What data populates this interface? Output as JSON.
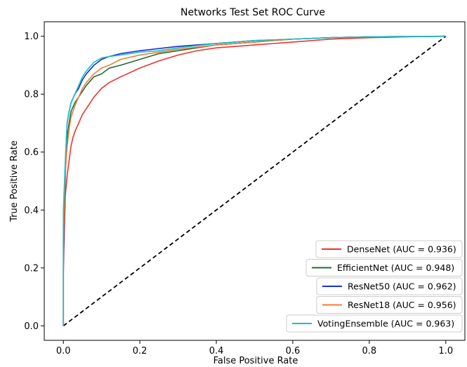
{
  "chart_data": {
    "type": "line",
    "title": "Networks Test Set ROC Curve",
    "xlabel": "False Positive Rate",
    "ylabel": "True Positive Rate",
    "xlim": [
      -0.05,
      1.05
    ],
    "ylim": [
      -0.05,
      1.05
    ],
    "xticks": [
      "0.0",
      "0.2",
      "0.4",
      "0.6",
      "0.8",
      "1.0"
    ],
    "yticks": [
      "0.0",
      "0.2",
      "0.4",
      "0.6",
      "0.8",
      "1.0"
    ],
    "grid": false,
    "legend_position": "lower-right",
    "baseline": {
      "x": [
        0,
        1
      ],
      "y": [
        0,
        1
      ],
      "style": "dashed",
      "color": "#000000"
    },
    "series": [
      {
        "name": "DenseNet (AUC = 0.936)",
        "color": "#e8352e",
        "x": [
          0,
          0,
          0.003,
          0.005,
          0.01,
          0.015,
          0.02,
          0.025,
          0.03,
          0.04,
          0.05,
          0.06,
          0.07,
          0.08,
          0.1,
          0.12,
          0.15,
          0.2,
          0.25,
          0.3,
          0.35,
          0.4,
          0.5,
          0.6,
          0.7,
          0.8,
          0.9,
          1.0
        ],
        "y": [
          0,
          0.2,
          0.35,
          0.45,
          0.52,
          0.57,
          0.62,
          0.65,
          0.67,
          0.7,
          0.73,
          0.75,
          0.77,
          0.79,
          0.82,
          0.84,
          0.86,
          0.89,
          0.915,
          0.935,
          0.95,
          0.96,
          0.97,
          0.98,
          0.99,
          0.995,
          0.998,
          1.0
        ]
      },
      {
        "name": "EfficientNet (AUC = 0.948)",
        "color": "#1f6b3a",
        "x": [
          0,
          0,
          0.003,
          0.006,
          0.01,
          0.015,
          0.02,
          0.03,
          0.04,
          0.05,
          0.06,
          0.08,
          0.1,
          0.12,
          0.15,
          0.2,
          0.25,
          0.3,
          0.4,
          0.5,
          0.6,
          0.7,
          0.8,
          0.9,
          1.0
        ],
        "y": [
          0,
          0.25,
          0.4,
          0.55,
          0.65,
          0.7,
          0.74,
          0.77,
          0.79,
          0.81,
          0.83,
          0.86,
          0.87,
          0.89,
          0.9,
          0.92,
          0.94,
          0.95,
          0.97,
          0.98,
          0.99,
          0.995,
          0.998,
          0.999,
          1.0
        ]
      },
      {
        "name": "ResNet50 (AUC = 0.962)",
        "color": "#1530d6",
        "x": [
          0,
          0,
          0.002,
          0.005,
          0.008,
          0.01,
          0.015,
          0.02,
          0.03,
          0.04,
          0.05,
          0.06,
          0.08,
          0.1,
          0.12,
          0.15,
          0.2,
          0.3,
          0.4,
          0.5,
          0.6,
          0.7,
          0.8,
          0.9,
          1.0
        ],
        "y": [
          0,
          0.18,
          0.4,
          0.55,
          0.65,
          0.7,
          0.74,
          0.77,
          0.8,
          0.82,
          0.85,
          0.87,
          0.9,
          0.92,
          0.93,
          0.94,
          0.95,
          0.965,
          0.975,
          0.985,
          0.99,
          0.995,
          0.998,
          0.999,
          1.0
        ]
      },
      {
        "name": "ResNet18 (AUC = 0.956)",
        "color": "#f07d3a",
        "x": [
          0,
          0,
          0.003,
          0.006,
          0.01,
          0.015,
          0.02,
          0.03,
          0.04,
          0.05,
          0.06,
          0.08,
          0.1,
          0.12,
          0.15,
          0.2,
          0.25,
          0.3,
          0.4,
          0.5,
          0.6,
          0.7,
          0.8,
          0.9,
          1.0
        ],
        "y": [
          0,
          0.3,
          0.45,
          0.55,
          0.62,
          0.68,
          0.72,
          0.76,
          0.79,
          0.82,
          0.84,
          0.87,
          0.89,
          0.9,
          0.92,
          0.935,
          0.945,
          0.955,
          0.97,
          0.98,
          0.99,
          0.995,
          0.998,
          0.999,
          1.0
        ]
      },
      {
        "name": "VotingEnsemble (AUC = 0.963)",
        "color": "#1fbfc4",
        "x": [
          0,
          0,
          0.003,
          0.006,
          0.01,
          0.015,
          0.02,
          0.03,
          0.04,
          0.05,
          0.06,
          0.08,
          0.1,
          0.12,
          0.15,
          0.2,
          0.25,
          0.3,
          0.4,
          0.5,
          0.6,
          0.7,
          0.8,
          0.9,
          1.0
        ],
        "y": [
          0,
          0.4,
          0.5,
          0.6,
          0.7,
          0.74,
          0.77,
          0.8,
          0.83,
          0.86,
          0.88,
          0.91,
          0.925,
          0.93,
          0.935,
          0.945,
          0.95,
          0.96,
          0.975,
          0.985,
          0.99,
          0.995,
          0.998,
          0.999,
          1.0
        ]
      }
    ]
  }
}
